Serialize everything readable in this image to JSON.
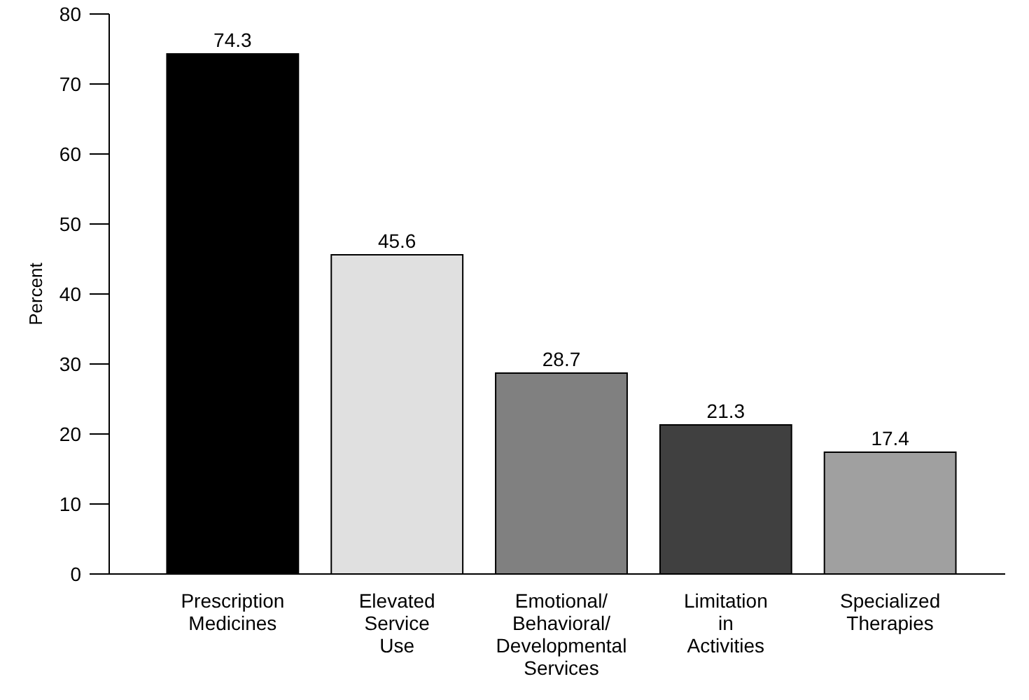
{
  "chart_data": {
    "type": "bar",
    "ylabel": "Percent",
    "categories": [
      "Prescription\nMedicines",
      "Elevated\nService\nUse",
      "Emotional/\nBehavioral/\nDevelopmental\nServices",
      "Limitation\nin\nActivities",
      "Specialized\nTherapies"
    ],
    "values": [
      74.3,
      45.6,
      28.7,
      21.3,
      17.4
    ],
    "colors": [
      "#000000",
      "#e0e0e0",
      "#808080",
      "#404040",
      "#a0a0a0"
    ],
    "ylim": [
      0,
      80
    ],
    "yticks": [
      0,
      10,
      20,
      30,
      40,
      50,
      60,
      70,
      80
    ],
    "data_labels": true,
    "grid": false
  }
}
